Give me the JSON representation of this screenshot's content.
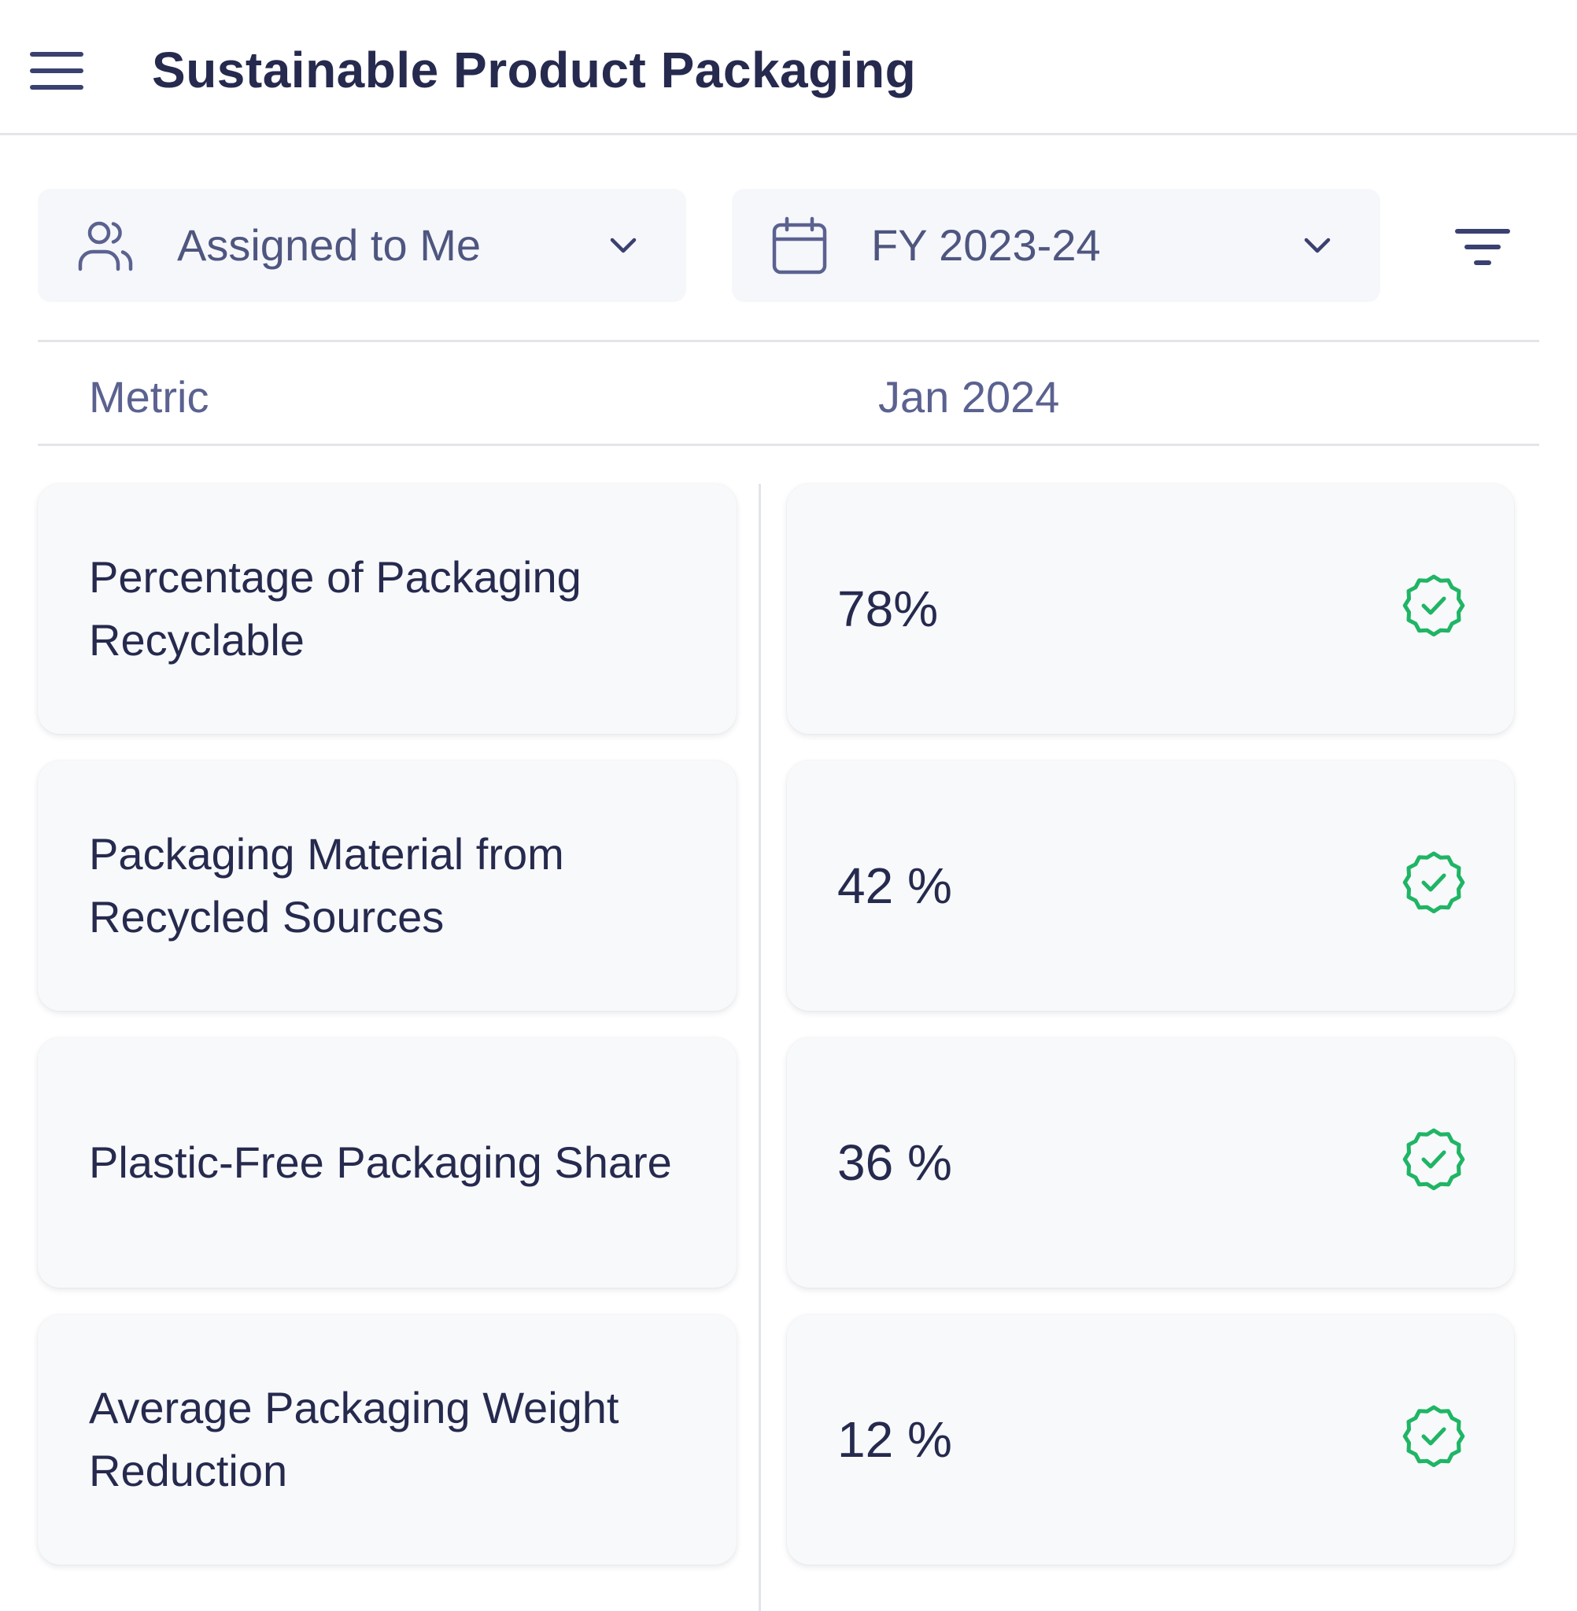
{
  "header": {
    "title": "Sustainable Product Packaging",
    "menu_icon": "hamburger-menu-icon"
  },
  "filters": {
    "assignee": {
      "icon": "users-icon",
      "label": "Assigned to Me"
    },
    "period": {
      "icon": "calendar-icon",
      "label": "FY 2023-24"
    },
    "filter_icon": "filter-lines-icon"
  },
  "table": {
    "headers": {
      "metric": "Metric",
      "month": "Jan 2024"
    },
    "rows": [
      {
        "metric": "Percentage of Packaging Recyclable",
        "value": "78%",
        "status": "verified"
      },
      {
        "metric": "Packaging Material from Recycled Sources",
        "value": "42 %",
        "status": "verified"
      },
      {
        "metric": "Plastic-Free Packaging Share",
        "value": "36 %",
        "status": "verified"
      },
      {
        "metric": "Average Packaging Weight Reduction",
        "value": "12 %",
        "status": "verified"
      }
    ]
  },
  "colors": {
    "text": "#262a4e",
    "muted": "#5b6290",
    "success": "#1fb565",
    "border": "#e3e5ea"
  }
}
